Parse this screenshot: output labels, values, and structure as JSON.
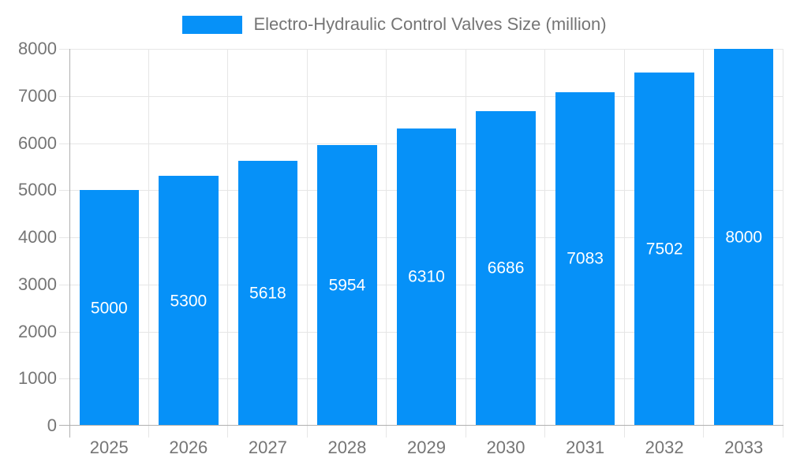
{
  "legend": {
    "label": "Electro-Hydraulic Control Valves Size (million)"
  },
  "chart_data": {
    "type": "bar",
    "title": "Electro-Hydraulic Control Valves Size (million)",
    "series_name": "Electro-Hydraulic Control Valves Size (million)",
    "categories": [
      "2025",
      "2026",
      "2027",
      "2028",
      "2029",
      "2030",
      "2031",
      "2032",
      "2033"
    ],
    "values": [
      5000,
      5300,
      5618,
      5954,
      6310,
      6686,
      7083,
      7502,
      8000
    ],
    "value_labels": [
      "5000",
      "5300",
      "5618",
      "5954",
      "6310",
      "6686",
      "7083",
      "7502",
      "8000"
    ],
    "xlabel": "",
    "ylabel": "",
    "ylim": [
      0,
      8000
    ],
    "ytick_step": 1000,
    "yticks": [
      0,
      1000,
      2000,
      3000,
      4000,
      5000,
      6000,
      7000,
      8000
    ],
    "ytick_labels": [
      "0",
      "1000",
      "2000",
      "3000",
      "4000",
      "5000",
      "6000",
      "7000",
      "8000"
    ],
    "grid": true,
    "legend_position": "top-center",
    "colors": {
      "bar": "#0691f8",
      "value_label": "#ffffff",
      "grid": "#e6e6e6",
      "axis_line": "#b0b0b0",
      "axis_text": "#757575"
    }
  }
}
